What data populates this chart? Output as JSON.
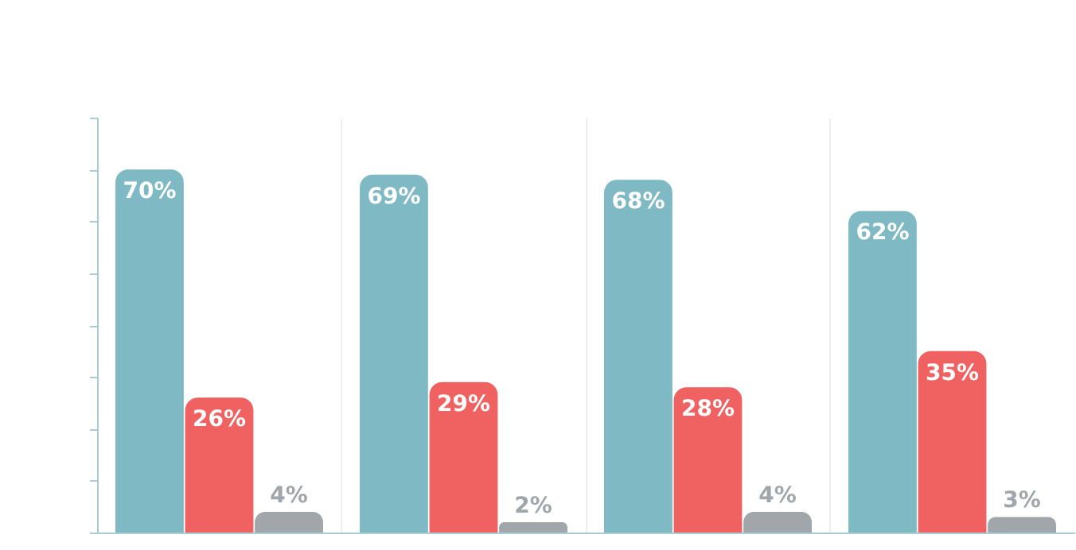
{
  "chart_data": {
    "type": "bar",
    "categories": [
      null,
      null,
      null,
      null
    ],
    "series": [
      {
        "color": "#7fbac4",
        "values": [
          70,
          69,
          68,
          62
        ],
        "value_labels": [
          "70%",
          "69%",
          "68%",
          "62%"
        ]
      },
      {
        "color": "#f06262",
        "values": [
          26,
          29,
          28,
          35
        ],
        "value_labels": [
          "26%",
          "29%",
          "28%",
          "35%"
        ]
      },
      {
        "color": "#a0a6aa",
        "values": [
          4,
          2,
          4,
          3
        ],
        "value_labels": [
          "4%",
          "2%",
          "4%",
          "3%"
        ]
      }
    ],
    "ylim": [
      0,
      80
    ],
    "yticks": [
      {
        "value": 0,
        "label": null
      },
      {
        "value": 10,
        "label": null
      },
      {
        "value": 20,
        "label": null
      },
      {
        "value": 30,
        "label": null
      },
      {
        "value": 40,
        "label": null
      },
      {
        "value": 50,
        "label": null
      },
      {
        "value": 60,
        "label": null
      },
      {
        "value": 70,
        "label": null
      },
      {
        "value": 80,
        "label": null
      }
    ],
    "grid": "x",
    "legend": false
  }
}
